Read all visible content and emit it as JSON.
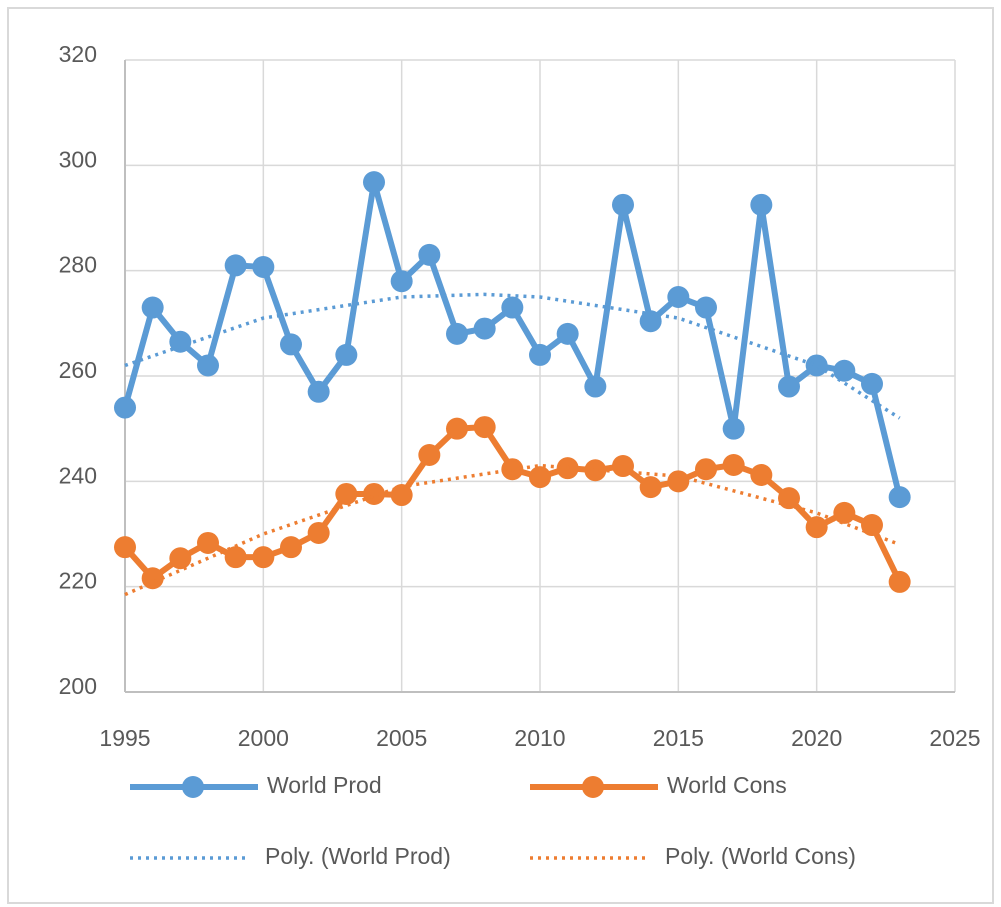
{
  "chart_data": {
    "type": "line",
    "x": [
      1995,
      1996,
      1997,
      1998,
      1999,
      2000,
      2001,
      2002,
      2003,
      2004,
      2005,
      2006,
      2007,
      2008,
      2009,
      2010,
      2011,
      2012,
      2013,
      2014,
      2015,
      2016,
      2017,
      2018,
      2019,
      2020,
      2021,
      2022,
      2023
    ],
    "series": [
      {
        "name": "World Prod",
        "color": "#5b9bd5",
        "style": "solid",
        "markers": true,
        "values": [
          254,
          273,
          266.5,
          262,
          281,
          280.7,
          266,
          257,
          264,
          296.8,
          278,
          283,
          268,
          269,
          273,
          264,
          268,
          258,
          292.5,
          270.4,
          275,
          273,
          250,
          292.5,
          258,
          262,
          261,
          258.5,
          237
        ]
      },
      {
        "name": "World Cons",
        "color": "#ed7d31",
        "style": "solid",
        "markers": true,
        "values": [
          227.5,
          221.6,
          225.4,
          228.3,
          225.6,
          225.6,
          227.5,
          230.2,
          237.6,
          237.6,
          237.4,
          245,
          250,
          250.3,
          242.3,
          240.8,
          242.5,
          242.1,
          242.9,
          238.9,
          240,
          242.3,
          243.1,
          241.2,
          236.8,
          231.3,
          234,
          231.7,
          220.9
        ]
      },
      {
        "name": "Poly. (World Prod)",
        "color": "#5b9bd5",
        "style": "dotted",
        "markers": false,
        "x": [
          1995,
          2000,
          2005,
          2008,
          2010,
          2015,
          2020,
          2023
        ],
        "values": [
          262,
          271,
          275,
          275.5,
          275,
          271,
          262,
          252
        ]
      },
      {
        "name": "Poly. (World Cons)",
        "color": "#ed7d31",
        "style": "dotted",
        "markers": false,
        "x": [
          1995,
          2000,
          2005,
          2010,
          2015,
          2020,
          2023
        ],
        "values": [
          218.5,
          230,
          239,
          243,
          241,
          234,
          228
        ]
      }
    ],
    "xlim": [
      1995,
      2025
    ],
    "xticks": [
      1995,
      2000,
      2005,
      2010,
      2015,
      2020,
      2025
    ],
    "ylim": [
      200,
      320
    ],
    "yticks": [
      200,
      220,
      240,
      260,
      280,
      300,
      320
    ],
    "grid": true,
    "legend": "bottom"
  }
}
